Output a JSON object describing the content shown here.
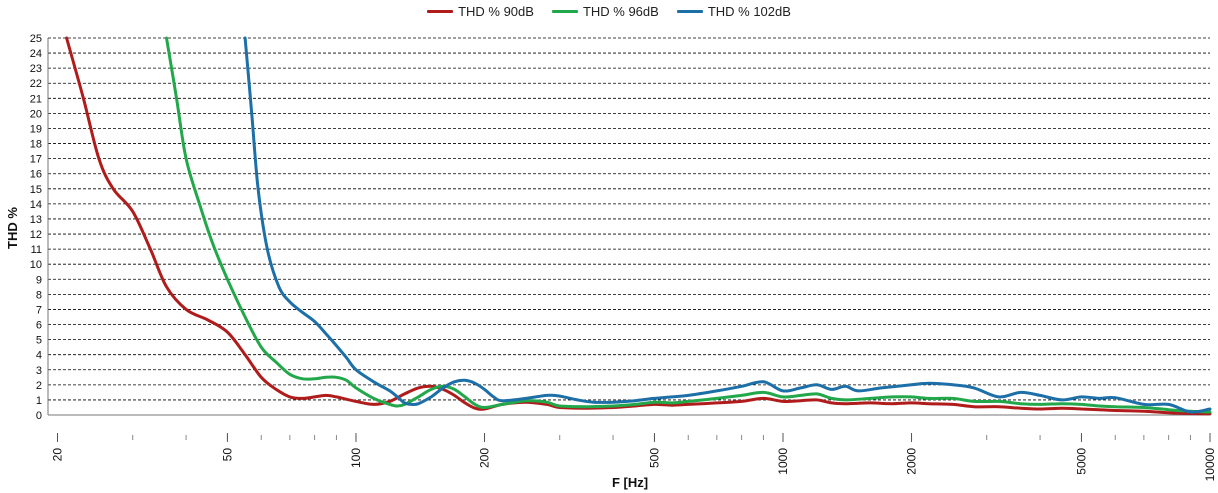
{
  "chart_data": {
    "type": "line",
    "title": "",
    "xlabel": "F [Hz]",
    "ylabel": "THD %",
    "x_scale": "log",
    "xlim": [
      19,
      10000
    ],
    "ylim": [
      0,
      25
    ],
    "x_ticks": [
      20,
      50,
      100,
      200,
      500,
      1000,
      2000,
      5000,
      10000
    ],
    "y_ticks": [
      0,
      1,
      2,
      3,
      4,
      5,
      6,
      7,
      8,
      9,
      10,
      11,
      12,
      13,
      14,
      15,
      16,
      17,
      18,
      19,
      20,
      21,
      22,
      23,
      24,
      25
    ],
    "grid": "horizontal dashed",
    "legend_position": "top-center",
    "series": [
      {
        "name": "THD % 90dB",
        "color": "#b01c1c",
        "points": [
          [
            21,
            25
          ],
          [
            23,
            21
          ],
          [
            25,
            17
          ],
          [
            27,
            15
          ],
          [
            30,
            13.5
          ],
          [
            33,
            11
          ],
          [
            36,
            8.5
          ],
          [
            40,
            7
          ],
          [
            45,
            6.3
          ],
          [
            50,
            5.5
          ],
          [
            55,
            4
          ],
          [
            60,
            2.5
          ],
          [
            65,
            1.7
          ],
          [
            70,
            1.2
          ],
          [
            75,
            1.1
          ],
          [
            80,
            1.2
          ],
          [
            85,
            1.3
          ],
          [
            90,
            1.2
          ],
          [
            100,
            0.9
          ],
          [
            110,
            0.7
          ],
          [
            120,
            0.9
          ],
          [
            130,
            1.4
          ],
          [
            140,
            1.8
          ],
          [
            150,
            1.9
          ],
          [
            160,
            1.7
          ],
          [
            170,
            1.3
          ],
          [
            180,
            0.8
          ],
          [
            190,
            0.45
          ],
          [
            200,
            0.4
          ],
          [
            220,
            0.7
          ],
          [
            250,
            0.85
          ],
          [
            280,
            0.7
          ],
          [
            300,
            0.5
          ],
          [
            350,
            0.45
          ],
          [
            400,
            0.5
          ],
          [
            450,
            0.6
          ],
          [
            500,
            0.7
          ],
          [
            550,
            0.65
          ],
          [
            600,
            0.7
          ],
          [
            700,
            0.8
          ],
          [
            800,
            0.9
          ],
          [
            900,
            1.1
          ],
          [
            1000,
            0.9
          ],
          [
            1100,
            0.95
          ],
          [
            1200,
            1.0
          ],
          [
            1300,
            0.8
          ],
          [
            1400,
            0.75
          ],
          [
            1600,
            0.8
          ],
          [
            1800,
            0.75
          ],
          [
            2000,
            0.8
          ],
          [
            2200,
            0.75
          ],
          [
            2500,
            0.7
          ],
          [
            2800,
            0.55
          ],
          [
            3200,
            0.55
          ],
          [
            3600,
            0.45
          ],
          [
            4000,
            0.4
          ],
          [
            4500,
            0.45
          ],
          [
            5000,
            0.4
          ],
          [
            5500,
            0.35
          ],
          [
            6000,
            0.3
          ],
          [
            7000,
            0.25
          ],
          [
            8000,
            0.15
          ],
          [
            9000,
            0.1
          ],
          [
            10000,
            0.08
          ]
        ]
      },
      {
        "name": "THD % 96dB",
        "color": "#22a84a",
        "points": [
          [
            36,
            25
          ],
          [
            38,
            21
          ],
          [
            40,
            17
          ],
          [
            43,
            14
          ],
          [
            46,
            11.5
          ],
          [
            50,
            9
          ],
          [
            55,
            6.5
          ],
          [
            60,
            4.5
          ],
          [
            65,
            3.5
          ],
          [
            70,
            2.7
          ],
          [
            75,
            2.4
          ],
          [
            80,
            2.4
          ],
          [
            85,
            2.5
          ],
          [
            90,
            2.5
          ],
          [
            95,
            2.3
          ],
          [
            100,
            1.8
          ],
          [
            110,
            1.1
          ],
          [
            120,
            0.7
          ],
          [
            125,
            0.6
          ],
          [
            130,
            0.7
          ],
          [
            140,
            1.2
          ],
          [
            150,
            1.7
          ],
          [
            160,
            1.9
          ],
          [
            170,
            1.7
          ],
          [
            180,
            1.2
          ],
          [
            190,
            0.7
          ],
          [
            200,
            0.5
          ],
          [
            220,
            0.7
          ],
          [
            250,
            0.95
          ],
          [
            280,
            0.85
          ],
          [
            300,
            0.6
          ],
          [
            350,
            0.55
          ],
          [
            400,
            0.6
          ],
          [
            450,
            0.7
          ],
          [
            500,
            0.85
          ],
          [
            550,
            0.8
          ],
          [
            600,
            0.9
          ],
          [
            700,
            1.1
          ],
          [
            800,
            1.3
          ],
          [
            900,
            1.5
          ],
          [
            1000,
            1.2
          ],
          [
            1100,
            1.3
          ],
          [
            1200,
            1.4
          ],
          [
            1300,
            1.1
          ],
          [
            1400,
            1.0
          ],
          [
            1600,
            1.1
          ],
          [
            1800,
            1.2
          ],
          [
            2000,
            1.2
          ],
          [
            2200,
            1.1
          ],
          [
            2500,
            1.1
          ],
          [
            2800,
            0.9
          ],
          [
            3200,
            0.9
          ],
          [
            3600,
            0.75
          ],
          [
            4000,
            0.7
          ],
          [
            4500,
            0.75
          ],
          [
            5000,
            0.7
          ],
          [
            5500,
            0.6
          ],
          [
            6000,
            0.55
          ],
          [
            7000,
            0.5
          ],
          [
            8000,
            0.35
          ],
          [
            9000,
            0.25
          ],
          [
            10000,
            0.2
          ]
        ]
      },
      {
        "name": "THD % 102dB",
        "color": "#1d6fa8",
        "points": [
          [
            55,
            25
          ],
          [
            57,
            20
          ],
          [
            59,
            15
          ],
          [
            62,
            11
          ],
          [
            66,
            8.5
          ],
          [
            70,
            7.5
          ],
          [
            75,
            6.8
          ],
          [
            80,
            6.2
          ],
          [
            85,
            5.4
          ],
          [
            90,
            4.6
          ],
          [
            95,
            3.8
          ],
          [
            100,
            3.0
          ],
          [
            110,
            2.2
          ],
          [
            120,
            1.6
          ],
          [
            125,
            1.2
          ],
          [
            130,
            0.8
          ],
          [
            135,
            0.7
          ],
          [
            140,
            0.75
          ],
          [
            150,
            1.2
          ],
          [
            160,
            1.8
          ],
          [
            170,
            2.2
          ],
          [
            180,
            2.3
          ],
          [
            190,
            2.1
          ],
          [
            200,
            1.7
          ],
          [
            210,
            1.2
          ],
          [
            220,
            0.95
          ],
          [
            250,
            1.1
          ],
          [
            280,
            1.3
          ],
          [
            300,
            1.25
          ],
          [
            330,
            1.0
          ],
          [
            360,
            0.85
          ],
          [
            400,
            0.85
          ],
          [
            450,
            0.95
          ],
          [
            500,
            1.1
          ],
          [
            550,
            1.2
          ],
          [
            600,
            1.3
          ],
          [
            700,
            1.6
          ],
          [
            800,
            1.9
          ],
          [
            900,
            2.2
          ],
          [
            1000,
            1.6
          ],
          [
            1100,
            1.8
          ],
          [
            1200,
            2.0
          ],
          [
            1300,
            1.7
          ],
          [
            1400,
            1.9
          ],
          [
            1500,
            1.6
          ],
          [
            1700,
            1.8
          ],
          [
            2000,
            2.0
          ],
          [
            2200,
            2.1
          ],
          [
            2500,
            2.0
          ],
          [
            2800,
            1.8
          ],
          [
            3200,
            1.2
          ],
          [
            3600,
            1.5
          ],
          [
            4000,
            1.3
          ],
          [
            4500,
            1.0
          ],
          [
            5000,
            1.2
          ],
          [
            5500,
            1.1
          ],
          [
            6000,
            1.15
          ],
          [
            7000,
            0.7
          ],
          [
            8000,
            0.7
          ],
          [
            9000,
            0.2
          ],
          [
            10000,
            0.4
          ]
        ]
      }
    ]
  }
}
